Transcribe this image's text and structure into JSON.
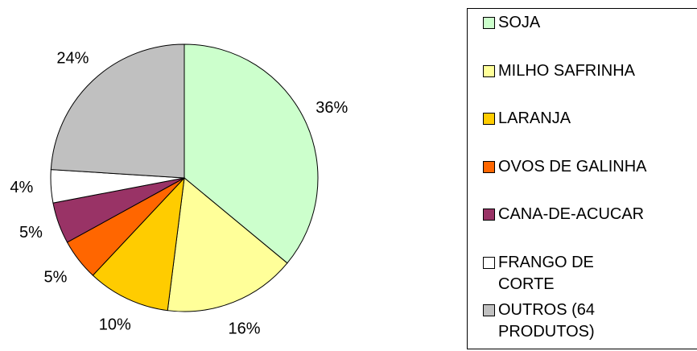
{
  "chart_data": {
    "type": "pie",
    "categories": [
      "SOJA",
      "MILHO SAFRINHA",
      "LARANJA",
      "OVOS DE GALINHA",
      "CANA-DE-ACUCAR",
      "FRANGO DE CORTE",
      "OUTROS (64 PRODUTOS)"
    ],
    "values": [
      36,
      16,
      10,
      5,
      5,
      4,
      24
    ],
    "value_labels": [
      "36%",
      "16%",
      "10%",
      "5%",
      "5%",
      "4%",
      "24%"
    ],
    "colors": [
      "#ccffcc",
      "#ffff99",
      "#ffcc00",
      "#ff6600",
      "#993366",
      "#ffffff",
      "#c0c0c0"
    ],
    "legend": "right"
  }
}
